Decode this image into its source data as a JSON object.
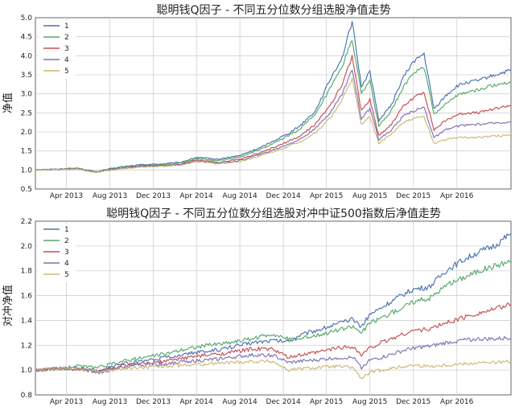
{
  "colors": {
    "s1": "#4c72b0",
    "s2": "#55a868",
    "s3": "#c44e52",
    "s4": "#8172b2",
    "s5": "#ccb974"
  },
  "chart_data": [
    {
      "type": "line",
      "title": "聪明钱Q因子 - 不同五分位数分组选股净值走势",
      "ylabel": "净值",
      "xlabel": "",
      "ylim": [
        0.5,
        5.0
      ],
      "yticks": [
        "0.5",
        "1.0",
        "1.5",
        "2.0",
        "2.5",
        "3.0",
        "3.5",
        "4.0",
        "4.5",
        "5.0"
      ],
      "xlim": [
        "2013-01-04",
        "2016-08-31"
      ],
      "xticks": [
        {
          "label": "Apr 2013",
          "date": "2013-04-01"
        },
        {
          "label": "Aug 2013",
          "date": "2013-08-01"
        },
        {
          "label": "Dec 2013",
          "date": "2013-12-01"
        },
        {
          "label": "Apr 2014",
          "date": "2014-04-01"
        },
        {
          "label": "Aug 2014",
          "date": "2014-08-01"
        },
        {
          "label": "Dec 2014",
          "date": "2014-12-01"
        },
        {
          "label": "Apr 2015",
          "date": "2015-04-01"
        },
        {
          "label": "Aug 2015",
          "date": "2015-08-01"
        },
        {
          "label": "Dec 2015",
          "date": "2015-12-01"
        },
        {
          "label": "Apr 2016",
          "date": "2016-04-01"
        }
      ],
      "grid": true,
      "legend": "top-left",
      "x": [
        "2013-01-04",
        "2013-03-01",
        "2013-05-01",
        "2013-06-25",
        "2013-07-15",
        "2013-09-01",
        "2013-11-01",
        "2014-01-01",
        "2014-02-15",
        "2014-04-01",
        "2014-06-01",
        "2014-08-01",
        "2014-10-01",
        "2014-11-15",
        "2014-12-15",
        "2015-01-15",
        "2015-03-01",
        "2015-04-15",
        "2015-05-15",
        "2015-06-12",
        "2015-07-08",
        "2015-08-01",
        "2015-08-26",
        "2015-09-30",
        "2015-11-01",
        "2015-12-01",
        "2015-12-31",
        "2016-01-28",
        "2016-03-01",
        "2016-04-01",
        "2016-05-01",
        "2016-06-01",
        "2016-07-01",
        "2016-08-31"
      ],
      "series": [
        {
          "name": "1",
          "color_key": "s1",
          "values": [
            1.0,
            1.02,
            1.05,
            0.95,
            1.0,
            1.08,
            1.14,
            1.16,
            1.2,
            1.33,
            1.28,
            1.38,
            1.6,
            1.82,
            1.96,
            2.15,
            2.55,
            3.45,
            3.95,
            4.9,
            3.2,
            3.6,
            2.3,
            2.7,
            3.4,
            3.85,
            4.05,
            2.6,
            2.95,
            3.2,
            3.3,
            3.35,
            3.45,
            3.62
          ]
        },
        {
          "name": "2",
          "color_key": "s2",
          "values": [
            1.0,
            1.02,
            1.04,
            0.95,
            0.99,
            1.07,
            1.12,
            1.14,
            1.18,
            1.3,
            1.25,
            1.34,
            1.55,
            1.75,
            1.9,
            2.07,
            2.45,
            3.2,
            3.7,
            4.45,
            3.0,
            3.35,
            2.15,
            2.55,
            3.15,
            3.55,
            3.7,
            2.45,
            2.75,
            2.95,
            3.05,
            3.1,
            3.2,
            3.32
          ]
        },
        {
          "name": "3",
          "color_key": "s3",
          "values": [
            1.0,
            1.01,
            1.03,
            0.94,
            0.98,
            1.05,
            1.1,
            1.12,
            1.15,
            1.26,
            1.2,
            1.28,
            1.46,
            1.63,
            1.75,
            1.88,
            2.2,
            2.75,
            3.25,
            4.0,
            2.55,
            2.85,
            1.9,
            2.2,
            2.65,
            2.9,
            3.05,
            2.05,
            2.3,
            2.45,
            2.5,
            2.5,
            2.58,
            2.7
          ]
        },
        {
          "name": "4",
          "color_key": "s4",
          "values": [
            1.0,
            1.01,
            1.03,
            0.94,
            0.98,
            1.04,
            1.09,
            1.11,
            1.14,
            1.24,
            1.18,
            1.25,
            1.42,
            1.57,
            1.68,
            1.8,
            2.08,
            2.55,
            3.0,
            3.65,
            2.35,
            2.6,
            1.8,
            2.05,
            2.4,
            2.55,
            2.65,
            1.85,
            2.05,
            2.15,
            2.18,
            2.2,
            2.22,
            2.27
          ]
        },
        {
          "name": "5",
          "color_key": "s5",
          "values": [
            1.0,
            1.01,
            1.02,
            0.93,
            0.97,
            1.03,
            1.08,
            1.1,
            1.12,
            1.22,
            1.16,
            1.22,
            1.38,
            1.52,
            1.62,
            1.73,
            1.98,
            2.4,
            2.85,
            3.4,
            2.2,
            2.4,
            1.7,
            1.95,
            2.25,
            2.35,
            2.4,
            1.7,
            1.8,
            1.85,
            1.85,
            1.86,
            1.88,
            1.92
          ]
        }
      ]
    },
    {
      "type": "line",
      "title": "聪明钱Q因子 - 不同五分位数分组选股对冲中证500指数后净值走势",
      "ylabel": "对冲净值",
      "xlabel": "",
      "ylim": [
        0.8,
        2.2
      ],
      "yticks": [
        "0.8",
        "1.0",
        "1.2",
        "1.4",
        "1.6",
        "1.8",
        "2.0",
        "2.2"
      ],
      "xlim": [
        "2013-01-04",
        "2016-08-31"
      ],
      "xticks": [
        {
          "label": "Apr 2013",
          "date": "2013-04-01"
        },
        {
          "label": "Aug 2013",
          "date": "2013-08-01"
        },
        {
          "label": "Dec 2013",
          "date": "2013-12-01"
        },
        {
          "label": "Apr 2014",
          "date": "2014-04-01"
        },
        {
          "label": "Aug 2014",
          "date": "2014-08-01"
        },
        {
          "label": "Dec 2014",
          "date": "2014-12-01"
        },
        {
          "label": "Apr 2015",
          "date": "2015-04-01"
        },
        {
          "label": "Aug 2015",
          "date": "2015-08-01"
        },
        {
          "label": "Dec 2015",
          "date": "2015-12-01"
        },
        {
          "label": "Apr 2016",
          "date": "2016-04-01"
        }
      ],
      "grid": true,
      "legend": "top-left",
      "x": [
        "2013-01-04",
        "2013-03-01",
        "2013-05-01",
        "2013-07-01",
        "2013-09-01",
        "2013-11-01",
        "2014-01-01",
        "2014-03-01",
        "2014-05-01",
        "2014-07-01",
        "2014-09-01",
        "2014-11-01",
        "2014-12-15",
        "2015-01-15",
        "2015-03-01",
        "2015-05-01",
        "2015-06-15",
        "2015-07-08",
        "2015-08-01",
        "2015-09-01",
        "2015-10-15",
        "2015-12-01",
        "2016-01-15",
        "2016-03-01",
        "2016-04-15",
        "2016-06-01",
        "2016-07-15",
        "2016-08-31"
      ],
      "series": [
        {
          "name": "1",
          "color_key": "s1",
          "values": [
            1.0,
            1.01,
            1.02,
            1.0,
            1.05,
            1.07,
            1.1,
            1.13,
            1.15,
            1.18,
            1.22,
            1.24,
            1.23,
            1.28,
            1.32,
            1.37,
            1.41,
            1.35,
            1.45,
            1.5,
            1.58,
            1.65,
            1.67,
            1.8,
            1.88,
            1.95,
            2.0,
            2.1
          ]
        },
        {
          "name": "2",
          "color_key": "s2",
          "values": [
            1.0,
            1.01,
            1.03,
            1.02,
            1.07,
            1.1,
            1.13,
            1.17,
            1.2,
            1.22,
            1.25,
            1.29,
            1.25,
            1.25,
            1.28,
            1.32,
            1.35,
            1.3,
            1.38,
            1.42,
            1.48,
            1.55,
            1.58,
            1.68,
            1.74,
            1.8,
            1.84,
            1.88
          ]
        },
        {
          "name": "3",
          "color_key": "s3",
          "values": [
            1.0,
            1.01,
            1.01,
            0.99,
            1.03,
            1.05,
            1.07,
            1.1,
            1.12,
            1.14,
            1.17,
            1.17,
            1.1,
            1.12,
            1.14,
            1.18,
            1.19,
            1.12,
            1.18,
            1.22,
            1.27,
            1.32,
            1.33,
            1.38,
            1.42,
            1.46,
            1.49,
            1.53
          ]
        },
        {
          "name": "4",
          "color_key": "s4",
          "values": [
            1.0,
            1.01,
            1.01,
            0.98,
            1.02,
            1.04,
            1.05,
            1.07,
            1.08,
            1.1,
            1.12,
            1.12,
            1.06,
            1.07,
            1.08,
            1.1,
            1.1,
            1.02,
            1.08,
            1.1,
            1.14,
            1.18,
            1.19,
            1.22,
            1.24,
            1.25,
            1.25,
            1.26
          ]
        },
        {
          "name": "5",
          "color_key": "s5",
          "values": [
            1.0,
            1.01,
            1.01,
            0.98,
            1.01,
            1.02,
            1.03,
            1.04,
            1.05,
            1.06,
            1.07,
            1.07,
            1.0,
            1.01,
            1.02,
            1.03,
            1.02,
            0.93,
            0.98,
            1.0,
            1.02,
            1.04,
            1.03,
            1.04,
            1.05,
            1.06,
            1.06,
            1.07
          ]
        }
      ]
    }
  ]
}
